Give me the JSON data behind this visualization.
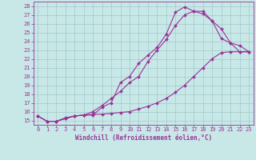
{
  "title": "",
  "xlabel": "Windchill (Refroidissement éolien,°C)",
  "ylabel": "",
  "background_color": "#c8e8e8",
  "grid_color": "#a0c8c8",
  "line_color": "#993399",
  "xlim": [
    -0.5,
    23.5
  ],
  "ylim": [
    14.5,
    28.5
  ],
  "xticks": [
    0,
    1,
    2,
    3,
    4,
    5,
    6,
    7,
    8,
    9,
    10,
    11,
    12,
    13,
    14,
    15,
    16,
    17,
    18,
    19,
    20,
    21,
    22,
    23
  ],
  "yticks": [
    15,
    16,
    17,
    18,
    19,
    20,
    21,
    22,
    23,
    24,
    25,
    26,
    27,
    28
  ],
  "line1_x": [
    0,
    1,
    2,
    3,
    4,
    5,
    6,
    7,
    8,
    9,
    10,
    11,
    12,
    13,
    14,
    15,
    16,
    17,
    18,
    19,
    20,
    21,
    22,
    23
  ],
  "line1_y": [
    15.5,
    14.9,
    14.9,
    15.3,
    15.5,
    15.6,
    15.6,
    16.5,
    17.0,
    19.3,
    20.0,
    21.5,
    22.4,
    23.3,
    24.8,
    27.3,
    27.9,
    27.4,
    27.4,
    26.3,
    25.4,
    23.8,
    22.8,
    22.8
  ],
  "line2_x": [
    0,
    1,
    2,
    3,
    4,
    5,
    6,
    7,
    8,
    9,
    10,
    11,
    12,
    13,
    14,
    15,
    16,
    17,
    18,
    19,
    20,
    21,
    22,
    23
  ],
  "line2_y": [
    15.5,
    14.9,
    14.9,
    15.2,
    15.5,
    15.6,
    16.0,
    16.7,
    17.5,
    18.3,
    19.3,
    20.0,
    21.7,
    23.0,
    24.2,
    25.8,
    27.0,
    27.4,
    27.1,
    26.3,
    24.3,
    23.8,
    23.5,
    22.8
  ],
  "line3_x": [
    0,
    1,
    2,
    3,
    4,
    5,
    6,
    7,
    8,
    9,
    10,
    11,
    12,
    13,
    14,
    15,
    16,
    17,
    18,
    19,
    20,
    21,
    22,
    23
  ],
  "line3_y": [
    15.5,
    14.9,
    14.9,
    15.2,
    15.5,
    15.6,
    15.7,
    15.7,
    15.8,
    15.9,
    16.0,
    16.3,
    16.6,
    17.0,
    17.5,
    18.2,
    19.0,
    20.0,
    21.0,
    22.0,
    22.7,
    22.8,
    22.8,
    22.8
  ],
  "tick_fontsize": 5,
  "xlabel_fontsize": 5.5,
  "marker": "D",
  "markersize": 2,
  "linewidth": 0.8
}
